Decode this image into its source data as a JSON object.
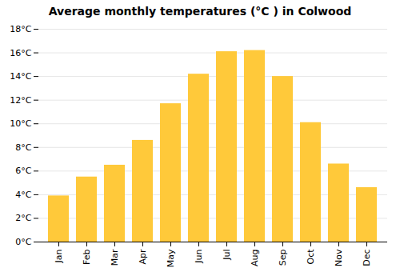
{
  "chart_data": {
    "type": "bar",
    "title": "Average monthly temperatures (°C ) in Colwood",
    "categories": [
      "Jan",
      "Feb",
      "Mar",
      "Apr",
      "May",
      "Jun",
      "Jul",
      "Aug",
      "Sep",
      "Oct",
      "Nov",
      "Dec"
    ],
    "values": [
      3.9,
      5.5,
      6.5,
      8.6,
      11.7,
      14.2,
      16.1,
      16.2,
      14.0,
      10.1,
      6.6,
      4.6
    ],
    "color": "#FFC93A",
    "ylim": [
      0,
      18
    ],
    "yticks": [
      {
        "value": 0,
        "label": "0°C"
      },
      {
        "value": 2,
        "label": "2°C"
      },
      {
        "value": 4,
        "label": "4°C"
      },
      {
        "value": 6,
        "label": "6°C"
      },
      {
        "value": 8,
        "label": "8°C"
      },
      {
        "value": 10,
        "label": "10°C"
      },
      {
        "value": 12,
        "label": "12°C"
      },
      {
        "value": 14,
        "label": "14°C"
      },
      {
        "value": 16,
        "label": "16°C"
      },
      {
        "value": 18,
        "label": "18°C"
      }
    ],
    "grid": true
  }
}
